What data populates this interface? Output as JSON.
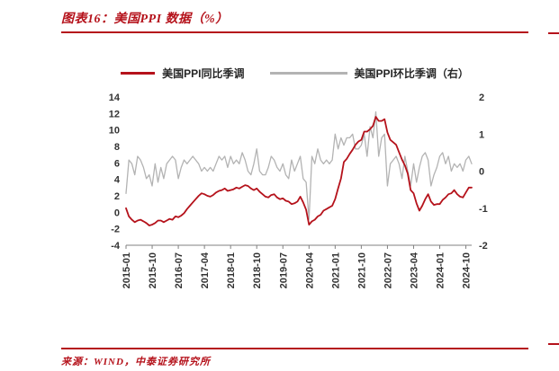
{
  "page": {
    "title": "图表16：美国PPI 数据（%）",
    "source": "来源：WIND，中泰证券研究所",
    "accent_color": "#b5121b"
  },
  "legend": [
    {
      "label": "美国PPI同比季调",
      "color": "#b5121b"
    },
    {
      "label": "美国PPI环比季调（右）",
      "color": "#b3b3b3"
    }
  ],
  "chart_data": {
    "type": "line",
    "title": "图表16：美国PPI 数据（%）",
    "x_start": "2015-01",
    "x_freq": "monthly",
    "x_count": 120,
    "x_tick_labels": [
      "2015-01",
      "2015-10",
      "2016-07",
      "2017-04",
      "2018-01",
      "2018-10",
      "2019-07",
      "2020-04",
      "2021-01",
      "2021-10",
      "2022-07",
      "2023-04",
      "2024-01",
      "2024-10"
    ],
    "x_tick_indices": [
      0,
      9,
      18,
      27,
      36,
      45,
      54,
      63,
      72,
      81,
      90,
      99,
      108,
      117
    ],
    "left_axis": {
      "min": -4,
      "max": 14,
      "step": 2
    },
    "right_axis": {
      "min": -2,
      "max": 2,
      "step": 1
    },
    "grid": false,
    "legend_position": "top",
    "series": [
      {
        "name": "美国PPI同比季调",
        "axis": "left",
        "color": "#b5121b",
        "values": [
          0.5,
          -0.5,
          -0.9,
          -1.2,
          -1.0,
          -0.9,
          -1.1,
          -1.3,
          -1.6,
          -1.5,
          -1.3,
          -1.0,
          -1.0,
          -1.2,
          -1.0,
          -0.8,
          -0.9,
          -0.5,
          -0.6,
          -0.4,
          -0.1,
          0.4,
          0.8,
          1.2,
          1.6,
          2.0,
          2.3,
          2.2,
          2.0,
          1.9,
          2.1,
          2.4,
          2.6,
          2.7,
          2.9,
          2.6,
          2.7,
          2.8,
          3.0,
          2.9,
          3.1,
          3.3,
          3.2,
          2.9,
          2.7,
          2.9,
          2.5,
          2.2,
          1.9,
          1.8,
          2.1,
          2.2,
          1.8,
          1.6,
          1.7,
          1.4,
          1.3,
          1.0,
          1.1,
          1.3,
          1.9,
          1.2,
          0.3,
          -1.5,
          -1.1,
          -0.9,
          -0.5,
          -0.3,
          0.2,
          0.4,
          0.6,
          0.8,
          1.6,
          2.9,
          4.1,
          6.1,
          6.5,
          7.1,
          7.6,
          8.2,
          8.6,
          8.8,
          9.8,
          9.8,
          10.1,
          10.5,
          11.6,
          11.1,
          11.1,
          11.3,
          9.7,
          8.8,
          8.5,
          8.2,
          7.3,
          6.4,
          5.7,
          4.7,
          2.7,
          2.3,
          1.1,
          0.2,
          0.8,
          1.6,
          2.2,
          1.3,
          0.9,
          1.0,
          1.0,
          1.5,
          1.8,
          2.2,
          2.3,
          2.7,
          2.2,
          1.9,
          1.8,
          2.4,
          3.0,
          3.0
        ]
      },
      {
        "name": "美国PPI环比季调（右）",
        "axis": "right",
        "color": "#b3b3b3",
        "values": [
          -0.6,
          0.3,
          0.2,
          -0.1,
          0.4,
          0.3,
          0.1,
          -0.2,
          -0.1,
          -0.4,
          0.2,
          -0.3,
          0.1,
          -0.2,
          0.2,
          0.3,
          0.4,
          0.3,
          -0.2,
          0.1,
          0.3,
          0.2,
          0.3,
          0.4,
          0.3,
          0.2,
          0.0,
          0.1,
          0.0,
          0.1,
          0.0,
          0.2,
          0.4,
          0.3,
          0.4,
          0.1,
          0.4,
          0.2,
          0.3,
          0.2,
          0.5,
          0.3,
          0.0,
          -0.1,
          0.2,
          0.6,
          0.0,
          -0.1,
          -0.1,
          0.1,
          0.4,
          0.3,
          0.1,
          0.0,
          0.2,
          -0.1,
          -0.2,
          0.3,
          0.0,
          0.2,
          0.4,
          -0.2,
          -0.3,
          -1.3,
          0.4,
          0.2,
          0.6,
          0.3,
          0.2,
          0.3,
          0.2,
          0.3,
          1.0,
          0.6,
          0.9,
          0.7,
          0.9,
          0.9,
          1.0,
          0.6,
          0.6,
          0.7,
          1.0,
          0.4,
          1.2,
          0.9,
          1.6,
          0.4,
          0.9,
          1.0,
          -0.4,
          0.2,
          0.3,
          0.4,
          0.2,
          -0.2,
          0.4,
          0.0,
          -0.4,
          0.2,
          -0.3,
          0.1,
          0.4,
          0.5,
          0.3,
          -0.4,
          -0.1,
          0.1,
          0.4,
          0.5,
          0.2,
          0.4,
          0.0,
          0.2,
          0.1,
          0.2,
          0.0,
          0.3,
          0.4,
          0.2
        ]
      }
    ]
  }
}
